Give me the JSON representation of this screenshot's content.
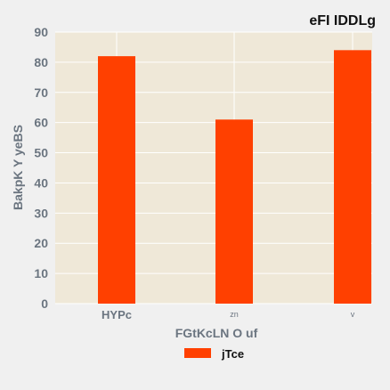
{
  "chart_data": {
    "type": "bar",
    "title": "eFI IDDLg",
    "xlabel": "FGtKcLN O  uf",
    "ylabel": "BakpK  Y yeBS",
    "categories": [
      "HYPc",
      "zn",
      "v"
    ],
    "series": [
      {
        "name": "jTce",
        "values": [
          82,
          61,
          84
        ]
      }
    ],
    "ylim": [
      0,
      90
    ],
    "yticks": [
      0,
      10,
      20,
      30,
      40,
      50,
      60,
      70,
      80,
      90
    ],
    "grid": true,
    "legend": "bottom-center",
    "colors": {
      "bar": "#ff4000",
      "plot_bg": "#efe8d8",
      "page_bg": "#f0f0f0",
      "grid": "#ffffff"
    }
  }
}
